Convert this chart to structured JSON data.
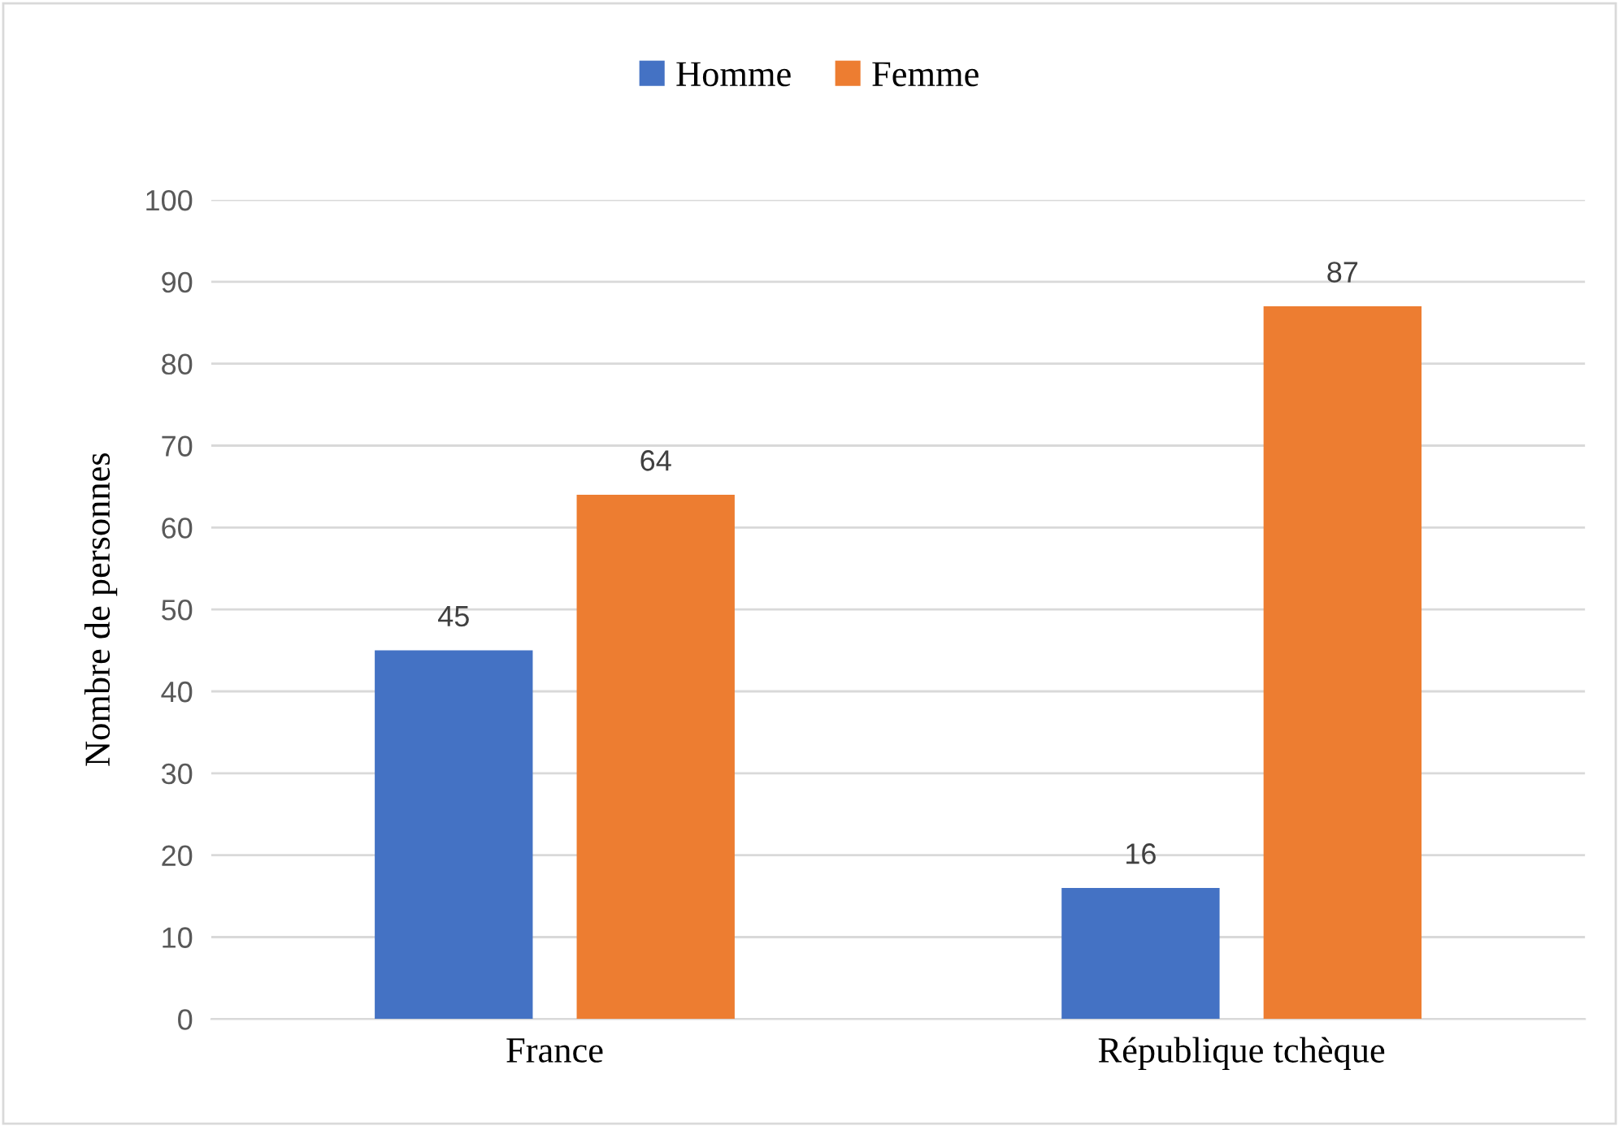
{
  "chart_data": {
    "type": "bar",
    "ylabel": "Nombre de personnes",
    "categories": [
      "France",
      "République tchèque"
    ],
    "series": [
      {
        "name": "Homme",
        "color": "#4472c4",
        "values": [
          45,
          16
        ]
      },
      {
        "name": "Femme",
        "color": "#ed7d31",
        "values": [
          64,
          87
        ]
      }
    ],
    "ylim": [
      0,
      100
    ],
    "yticks": [
      0,
      10,
      20,
      30,
      40,
      50,
      60,
      70,
      80,
      90,
      100
    ],
    "grid": "y",
    "legend": "top",
    "data_labels": true
  }
}
